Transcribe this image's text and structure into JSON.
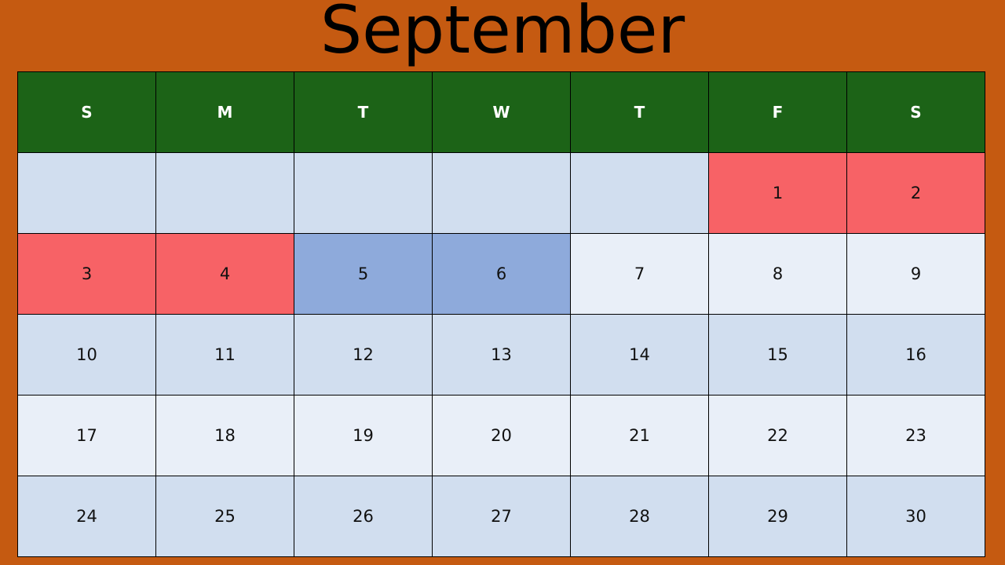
{
  "colors": {
    "background": "#c55a11",
    "header_bg": "#1c6317",
    "header_text": "#ffffff",
    "row_dark": "#d1deef",
    "row_light": "#e9eff8",
    "highlight_red": "#f76266",
    "highlight_blue": "#8eaadb"
  },
  "calendar": {
    "month": "September",
    "weekdays": [
      "S",
      "M",
      "T",
      "W",
      "T",
      "F",
      "S"
    ],
    "weeks": [
      [
        "",
        "",
        "",
        "",
        "",
        "1",
        "2"
      ],
      [
        "3",
        "4",
        "5",
        "6",
        "7",
        "8",
        "9"
      ],
      [
        "10",
        "11",
        "12",
        "13",
        "14",
        "15",
        "16"
      ],
      [
        "17",
        "18",
        "19",
        "20",
        "21",
        "22",
        "23"
      ],
      [
        "24",
        "25",
        "26",
        "27",
        "28",
        "29",
        "30"
      ]
    ],
    "highlight_red_days": [
      "1",
      "2",
      "3",
      "4"
    ],
    "highlight_blue_days": [
      "5",
      "6"
    ]
  }
}
